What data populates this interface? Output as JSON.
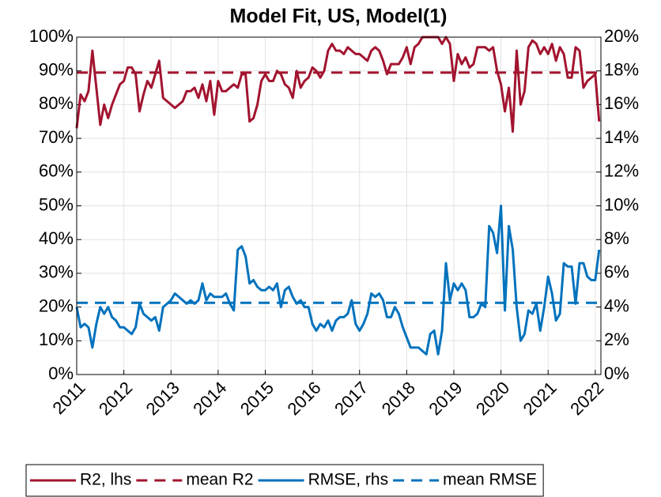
{
  "chart_data": {
    "type": "line",
    "title": "Model Fit, US, Model(1)",
    "x": [
      2011,
      2011.083,
      2011.167,
      2011.25,
      2011.333,
      2011.417,
      2011.5,
      2011.583,
      2011.667,
      2011.75,
      2011.833,
      2011.917,
      2012,
      2012.083,
      2012.167,
      2012.25,
      2012.333,
      2012.417,
      2012.5,
      2012.583,
      2012.667,
      2012.75,
      2012.833,
      2012.917,
      2013,
      2013.083,
      2013.167,
      2013.25,
      2013.333,
      2013.417,
      2013.5,
      2013.583,
      2013.667,
      2013.75,
      2013.833,
      2013.917,
      2014,
      2014.083,
      2014.167,
      2014.25,
      2014.333,
      2014.417,
      2014.5,
      2014.583,
      2014.667,
      2014.75,
      2014.833,
      2014.917,
      2015,
      2015.083,
      2015.167,
      2015.25,
      2015.333,
      2015.417,
      2015.5,
      2015.583,
      2015.667,
      2015.75,
      2015.833,
      2015.917,
      2016,
      2016.083,
      2016.167,
      2016.25,
      2016.333,
      2016.417,
      2016.5,
      2016.583,
      2016.667,
      2016.75,
      2016.833,
      2016.917,
      2017,
      2017.083,
      2017.167,
      2017.25,
      2017.333,
      2017.417,
      2017.5,
      2017.583,
      2017.667,
      2017.75,
      2017.833,
      2017.917,
      2018,
      2018.083,
      2018.167,
      2018.25,
      2018.333,
      2018.417,
      2018.5,
      2018.583,
      2018.667,
      2018.75,
      2018.833,
      2018.917,
      2019,
      2019.083,
      2019.167,
      2019.25,
      2019.333,
      2019.417,
      2019.5,
      2019.583,
      2019.667,
      2019.75,
      2019.833,
      2019.917,
      2020,
      2020.083,
      2020.167,
      2020.25,
      2020.333,
      2020.417,
      2020.5,
      2020.583,
      2020.667,
      2020.75,
      2020.833,
      2020.917,
      2021,
      2021.083,
      2021.167,
      2021.25,
      2021.333,
      2021.417,
      2021.5,
      2021.583,
      2021.667,
      2021.75,
      2021.833,
      2021.917,
      2022,
      2022.083
    ],
    "series": [
      {
        "name": "R2, lhs",
        "color": "#a2142f",
        "style": "solid",
        "axis": "y",
        "values": [
          73,
          83,
          81,
          84,
          96,
          85,
          74,
          80,
          76,
          80,
          83,
          86,
          87,
          91,
          91,
          89,
          78,
          83,
          87,
          85,
          89,
          93,
          82,
          81,
          80,
          79,
          80,
          81,
          84,
          84,
          85,
          82,
          86,
          81,
          87,
          77,
          87,
          84,
          84,
          85,
          86,
          85,
          89,
          89,
          75,
          76,
          80,
          87,
          89,
          87,
          87,
          90,
          89,
          86,
          85,
          82,
          90,
          85,
          87,
          88,
          91,
          90,
          88,
          90,
          96,
          98,
          96,
          96,
          95,
          97,
          96,
          95,
          95,
          94,
          93,
          96,
          97,
          96,
          93,
          89,
          92,
          92,
          92,
          94,
          97,
          92,
          97,
          98,
          100,
          100,
          100,
          100,
          100,
          98,
          100,
          98,
          87,
          95,
          92,
          94,
          91,
          92,
          97,
          97,
          97,
          96,
          97,
          90,
          86,
          78,
          85,
          72,
          96,
          80,
          84,
          97,
          99,
          98,
          95,
          97,
          95,
          98,
          93,
          97,
          95,
          88,
          88,
          97,
          96,
          85,
          87,
          88,
          89,
          75
        ]
      },
      {
        "name": "mean R2",
        "color": "#a2142f",
        "style": "dashed",
        "axis": "y",
        "x": [
          2011,
          2022.12
        ],
        "values": [
          89.5,
          89.5
        ]
      },
      {
        "name": "RMSE, rhs",
        "color": "#0072bd",
        "style": "solid",
        "axis": "y2",
        "values": [
          4.0,
          2.8,
          3.0,
          2.8,
          1.6,
          3.0,
          4.0,
          3.6,
          4.0,
          3.4,
          3.2,
          2.8,
          2.8,
          2.6,
          2.4,
          2.8,
          4.2,
          3.6,
          3.4,
          3.2,
          3.4,
          2.6,
          4.0,
          4.2,
          4.4,
          4.8,
          4.6,
          4.4,
          4.2,
          4.4,
          4.2,
          4.4,
          5.4,
          4.4,
          4.8,
          4.6,
          4.6,
          4.6,
          4.8,
          4.2,
          3.8,
          7.4,
          7.6,
          7.0,
          5.4,
          5.6,
          5.2,
          5.0,
          5.0,
          5.2,
          5.0,
          5.4,
          4.0,
          5.0,
          5.2,
          4.6,
          4.2,
          4.4,
          4.0,
          4.0,
          3.0,
          2.6,
          3.0,
          2.8,
          3.2,
          2.6,
          3.2,
          3.4,
          3.4,
          3.6,
          4.4,
          3.0,
          2.6,
          3.0,
          3.6,
          4.8,
          4.6,
          4.8,
          4.4,
          3.4,
          3.4,
          4.0,
          3.6,
          2.8,
          2.2,
          1.6,
          1.6,
          1.6,
          1.4,
          1.2,
          2.4,
          2.6,
          1.2,
          2.6,
          6.6,
          4.4,
          5.4,
          5.0,
          5.4,
          5.0,
          3.4,
          3.4,
          3.6,
          4.2,
          4.0,
          8.8,
          8.4,
          7.2,
          10.0,
          3.8,
          8.8,
          7.4,
          4.0,
          2.0,
          2.4,
          3.8,
          3.6,
          4.2,
          2.6,
          4.0,
          5.8,
          4.8,
          3.2,
          3.6,
          6.6,
          6.4,
          6.4,
          4.2,
          6.6,
          6.6,
          5.8,
          5.6,
          5.6,
          7.4
        ]
      },
      {
        "name": "mean RMSE",
        "color": "#0072bd",
        "style": "dashed",
        "axis": "y2",
        "x": [
          2011,
          2022.12
        ],
        "values": [
          4.25,
          4.25
        ]
      }
    ],
    "xlim": [
      2011,
      2022.12
    ],
    "xticks": [
      2011,
      2012,
      2013,
      2014,
      2015,
      2016,
      2017,
      2018,
      2019,
      2020,
      2021,
      2022
    ],
    "ylim": [
      0,
      100
    ],
    "yticks": [
      {
        "value": 0,
        "label": "0%"
      },
      {
        "value": 10,
        "label": "10%"
      },
      {
        "value": 20,
        "label": "20%"
      },
      {
        "value": 30,
        "label": "30%"
      },
      {
        "value": 40,
        "label": "40%"
      },
      {
        "value": 50,
        "label": "50%"
      },
      {
        "value": 60,
        "label": "60%"
      },
      {
        "value": 70,
        "label": "70%"
      },
      {
        "value": 80,
        "label": "80%"
      },
      {
        "value": 90,
        "label": "90%"
      },
      {
        "value": 100,
        "label": "100%"
      }
    ],
    "y2lim": [
      0,
      20
    ],
    "y2ticks": [
      {
        "value": 0,
        "label": "0%"
      },
      {
        "value": 2,
        "label": "2%"
      },
      {
        "value": 4,
        "label": "4%"
      },
      {
        "value": 6,
        "label": "6%"
      },
      {
        "value": 8,
        "label": "8%"
      },
      {
        "value": 10,
        "label": "10%"
      },
      {
        "value": 12,
        "label": "12%"
      },
      {
        "value": 14,
        "label": "14%"
      },
      {
        "value": 16,
        "label": "16%"
      },
      {
        "value": 18,
        "label": "18%"
      },
      {
        "value": 20,
        "label": "20%"
      }
    ],
    "grid": true,
    "legend": "bottom"
  }
}
